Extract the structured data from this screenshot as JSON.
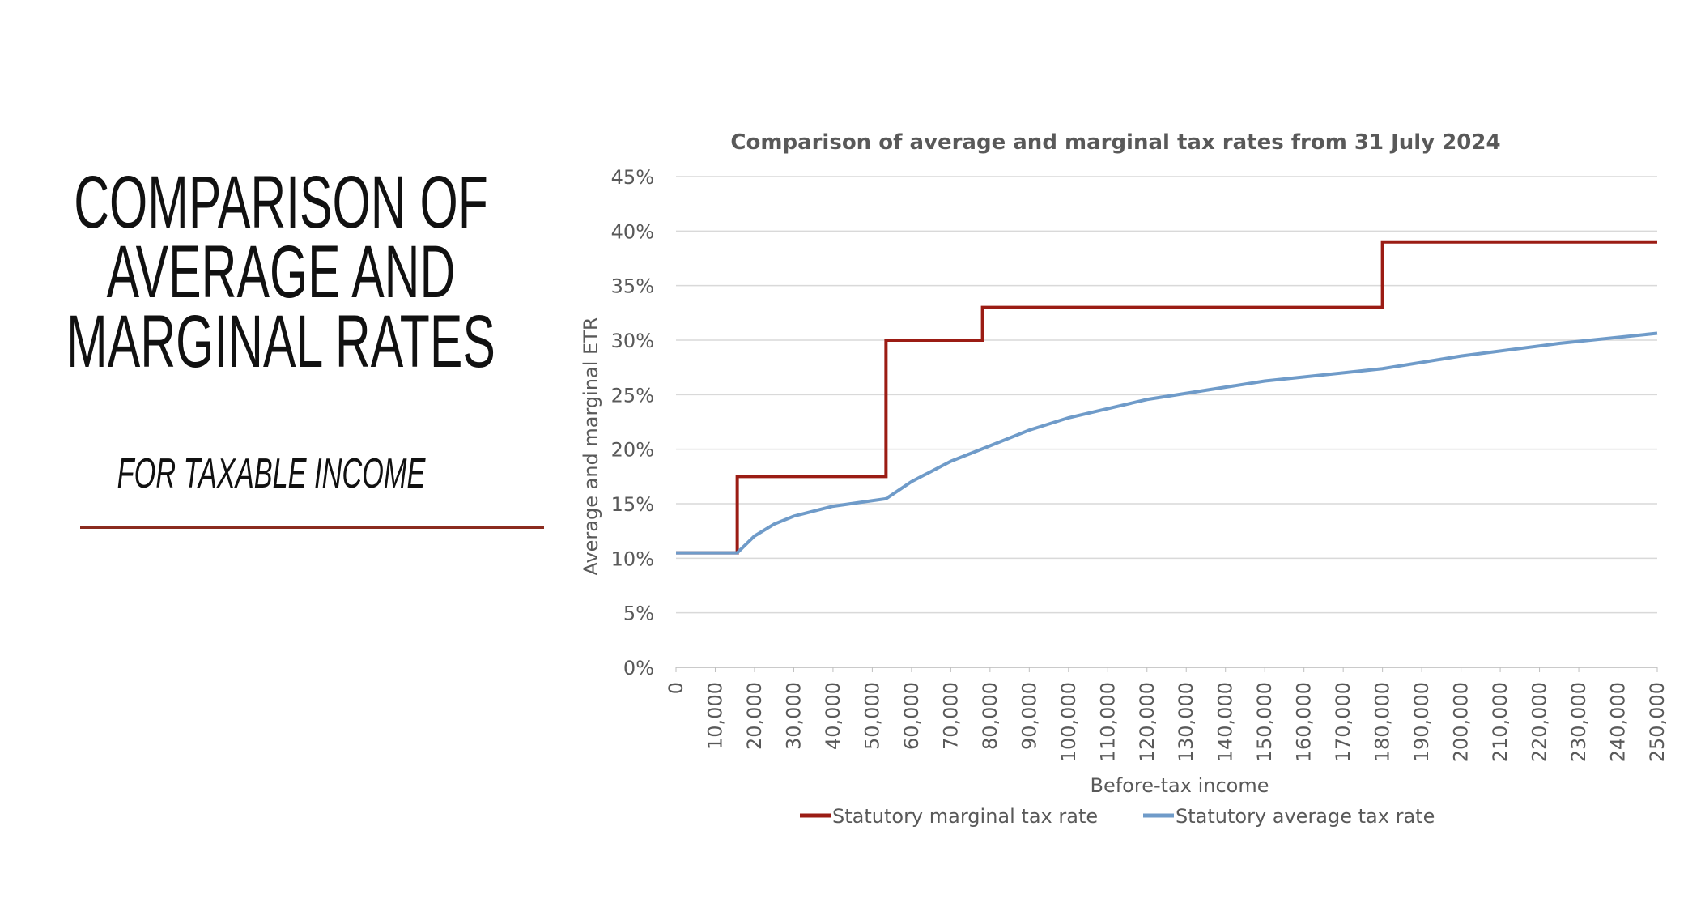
{
  "slide": {
    "title_lines": [
      "COMPARISON OF",
      "AVERAGE AND",
      "MARGINAL RATES"
    ],
    "subtitle": "FOR TAXABLE INCOME"
  },
  "chart_data": {
    "type": "line",
    "title": "Comparison of average and marginal tax rates from 31 July 2024",
    "x_label": "Before-tax income",
    "y_label": "Average and marginal ETR",
    "xlim": [
      0,
      250000
    ],
    "xticks": [
      0,
      {
        "value": 10000,
        "label": "10,000"
      },
      {
        "value": 20000,
        "label": "20,000"
      },
      {
        "value": 30000,
        "label": "30,000"
      },
      {
        "value": 40000,
        "label": "40,000"
      },
      {
        "value": 50000,
        "label": "50,000"
      },
      {
        "value": 60000,
        "label": "60,000"
      },
      {
        "value": 70000,
        "label": "70,000"
      },
      {
        "value": 80000,
        "label": "80,000"
      },
      {
        "value": 90000,
        "label": "90,000"
      },
      {
        "value": 100000,
        "label": "100,000"
      },
      {
        "value": 110000,
        "label": "110,000"
      },
      {
        "value": 120000,
        "label": "120,000"
      },
      {
        "value": 130000,
        "label": "130,000"
      },
      {
        "value": 140000,
        "label": "140,000"
      },
      {
        "value": 150000,
        "label": "150,000"
      },
      {
        "value": 160000,
        "label": "160,000"
      },
      {
        "value": 170000,
        "label": "170,000"
      },
      {
        "value": 180000,
        "label": "180,000"
      },
      {
        "value": 190000,
        "label": "190,000"
      },
      {
        "value": 200000,
        "label": "200,000"
      },
      {
        "value": 210000,
        "label": "210,000"
      },
      {
        "value": 220000,
        "label": "220,000"
      },
      {
        "value": 230000,
        "label": "230,000"
      },
      {
        "value": 240000,
        "label": "240,000"
      },
      {
        "value": 250000,
        "label": "250,000"
      }
    ],
    "ylim": [
      0,
      45
    ],
    "yticks": [
      {
        "value": 0,
        "label": "0%"
      },
      {
        "value": 5,
        "label": "5%"
      },
      {
        "value": 10,
        "label": "10%"
      },
      {
        "value": 15,
        "label": "15%"
      },
      {
        "value": 20,
        "label": "20%"
      },
      {
        "value": 25,
        "label": "25%"
      },
      {
        "value": 30,
        "label": "30%"
      },
      {
        "value": 35,
        "label": "35%"
      },
      {
        "value": 40,
        "label": "40%"
      },
      {
        "value": 45,
        "label": "45%"
      }
    ],
    "grid": true,
    "legend": "bottom",
    "series": [
      {
        "name": "Statutory marginal tax rate",
        "color": "#9b1c14",
        "x": [
          0,
          15600,
          15600,
          53500,
          53500,
          78100,
          78100,
          180000,
          180000,
          250000
        ],
        "values": [
          10.5,
          10.5,
          17.5,
          17.5,
          30,
          30,
          33,
          33,
          39,
          39
        ]
      },
      {
        "name": "Statutory average tax rate",
        "color": "#6f9bc9",
        "x": [
          0,
          15600,
          20000,
          25000,
          30000,
          40000,
          53500,
          60000,
          70000,
          78100,
          90000,
          100000,
          120000,
          150000,
          180000,
          200000,
          225000,
          250000
        ],
        "values": [
          10.5,
          10.5,
          12.04,
          13.13,
          13.86,
          14.77,
          15.46,
          17.03,
          18.89,
          20.04,
          21.75,
          22.88,
          24.56,
          26.25,
          27.38,
          28.54,
          29.7,
          30.63
        ]
      }
    ]
  }
}
